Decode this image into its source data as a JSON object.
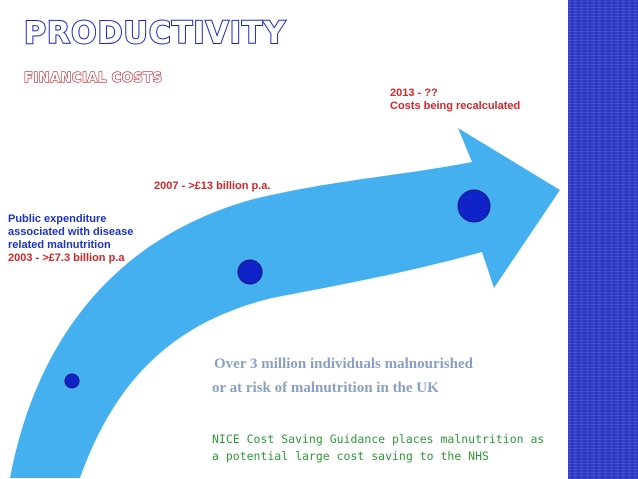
{
  "title": "PRODUCTIVITY",
  "subtitle": "FINANCIAL COSTS",
  "milestones": [
    {
      "lines": [
        "Public expenditure",
        "associated with disease",
        "related malnutrition"
      ],
      "value": "2003 - >£7.3 billion p.a"
    },
    {
      "value": "2007 -  >£13 billion p.a."
    },
    {
      "year": "2013 -  ??",
      "note": "Costs being recalculated"
    }
  ],
  "statement": {
    "line1": "Over 3 million individuals malnourished",
    "line2": "or at risk of malnutrition in the UK"
  },
  "nice": {
    "line1": "NICE Cost Saving Guidance places malnutrition as",
    "line2": "a potential large cost saving to the NHS"
  },
  "colors": {
    "arrow": "#44b0f0",
    "dot": "#0f23c8",
    "red_text": "#d6262b",
    "blue_text": "#1b34c7",
    "green_text": "#2f9a3a"
  }
}
